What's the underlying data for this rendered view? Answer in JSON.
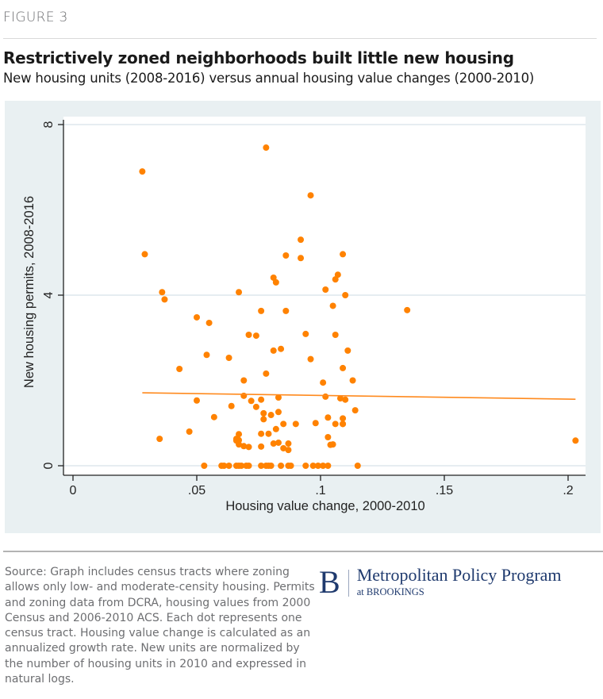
{
  "figure_label": "FIGURE 3",
  "title": "Restrictively zoned neighborhoods built little new housing",
  "subtitle": "New housing units (2008-2016) versus annual housing value changes (2000-2010)",
  "source_note": "Source: Graph includes census tracts where zoning allows only low- and moderate-censity housing. Permits and zoning data from DCRA, housing values from 2000 Census and 2006-2010 ACS. Each dot represents one census tract. Housing value change is calculated as an annualized growth rate. New units are normalized by the number of housing units in 2010 and expressed in natural logs.",
  "logo": {
    "letter": "B",
    "name": "Metropolitan Policy Program",
    "sub": "at BROOKINGS",
    "color": "#1f3a6e"
  },
  "colors": {
    "point": "#ff8200",
    "fit_line": "#ff8a1e",
    "panel_bg": "#e9f0f2",
    "plot_bg": "#ffffff",
    "gridline": "#e6edf1",
    "axis": "#222222"
  },
  "chart_data": {
    "type": "scatter",
    "title": "Restrictively zoned neighborhoods built little new housing",
    "xlabel": "Housing value change, 2000-2010",
    "ylabel": "New housing permits, 2008-2016",
    "xlim": [
      0,
      0.205
    ],
    "ylim": [
      0,
      8
    ],
    "xticks": [
      0,
      0.05,
      0.1,
      0.15,
      0.2
    ],
    "xtick_labels": [
      "0",
      ".05",
      ".1",
      ".15",
      ".2"
    ],
    "yticks": [
      0,
      4,
      8
    ],
    "ytick_labels": [
      "0",
      "4",
      "8"
    ],
    "grid": "horizontal",
    "legend": "none",
    "fit_line": {
      "x": [
        0.028,
        0.203
      ],
      "y": [
        1.71,
        1.56
      ]
    },
    "points": [
      [
        0.028,
        6.9
      ],
      [
        0.078,
        7.46
      ],
      [
        0.096,
        6.34
      ],
      [
        0.029,
        4.96
      ],
      [
        0.092,
        5.3
      ],
      [
        0.086,
        4.93
      ],
      [
        0.092,
        4.87
      ],
      [
        0.109,
        4.96
      ],
      [
        0.081,
        4.41
      ],
      [
        0.082,
        4.3
      ],
      [
        0.107,
        4.48
      ],
      [
        0.106,
        4.37
      ],
      [
        0.036,
        4.07
      ],
      [
        0.067,
        4.07
      ],
      [
        0.102,
        4.13
      ],
      [
        0.11,
        4.0
      ],
      [
        0.037,
        3.9
      ],
      [
        0.076,
        3.63
      ],
      [
        0.086,
        3.63
      ],
      [
        0.105,
        3.75
      ],
      [
        0.135,
        3.65
      ],
      [
        0.05,
        3.48
      ],
      [
        0.055,
        3.35
      ],
      [
        0.071,
        3.07
      ],
      [
        0.074,
        3.05
      ],
      [
        0.094,
        3.09
      ],
      [
        0.106,
        3.07
      ],
      [
        0.081,
        2.7
      ],
      [
        0.084,
        2.74
      ],
      [
        0.111,
        2.7
      ],
      [
        0.054,
        2.6
      ],
      [
        0.063,
        2.53
      ],
      [
        0.096,
        2.5
      ],
      [
        0.043,
        2.27
      ],
      [
        0.109,
        2.29
      ],
      [
        0.078,
        2.16
      ],
      [
        0.113,
        2.0
      ],
      [
        0.069,
        2.0
      ],
      [
        0.101,
        1.95
      ],
      [
        0.069,
        1.64
      ],
      [
        0.076,
        1.55
      ],
      [
        0.083,
        1.6
      ],
      [
        0.102,
        1.62
      ],
      [
        0.108,
        1.58
      ],
      [
        0.11,
        1.55
      ],
      [
        0.05,
        1.53
      ],
      [
        0.072,
        1.52
      ],
      [
        0.064,
        1.4
      ],
      [
        0.074,
        1.38
      ],
      [
        0.114,
        1.3
      ],
      [
        0.057,
        1.14
      ],
      [
        0.077,
        1.23
      ],
      [
        0.08,
        1.19
      ],
      [
        0.083,
        1.26
      ],
      [
        0.077,
        1.09
      ],
      [
        0.103,
        1.13
      ],
      [
        0.109,
        1.11
      ],
      [
        0.085,
        0.98
      ],
      [
        0.09,
        0.98
      ],
      [
        0.098,
        1.0
      ],
      [
        0.109,
        0.98
      ],
      [
        0.109,
        0.98
      ],
      [
        0.047,
        0.8
      ],
      [
        0.082,
        0.86
      ],
      [
        0.106,
        0.98
      ],
      [
        0.076,
        0.75
      ],
      [
        0.067,
        0.74
      ],
      [
        0.066,
        0.63
      ],
      [
        0.035,
        0.63
      ],
      [
        0.079,
        0.75
      ],
      [
        0.103,
        0.67
      ],
      [
        0.066,
        0.59
      ],
      [
        0.067,
        0.5
      ],
      [
        0.071,
        0.44
      ],
      [
        0.076,
        0.45
      ],
      [
        0.081,
        0.52
      ],
      [
        0.083,
        0.54
      ],
      [
        0.087,
        0.52
      ],
      [
        0.085,
        0.41
      ],
      [
        0.087,
        0.37
      ],
      [
        0.104,
        0.49
      ],
      [
        0.105,
        0.5
      ],
      [
        0.067,
        0.6
      ],
      [
        0.069,
        0.46
      ],
      [
        0.203,
        0.59
      ],
      [
        0.053,
        0.0
      ],
      [
        0.06,
        0.0
      ],
      [
        0.061,
        0.0
      ],
      [
        0.063,
        0.0
      ],
      [
        0.066,
        0.0
      ],
      [
        0.067,
        0.0
      ],
      [
        0.068,
        0.0
      ],
      [
        0.07,
        0.0
      ],
      [
        0.071,
        0.0
      ],
      [
        0.076,
        0.0
      ],
      [
        0.078,
        0.0
      ],
      [
        0.079,
        0.0
      ],
      [
        0.08,
        0.0
      ],
      [
        0.084,
        0.0
      ],
      [
        0.087,
        0.0
      ],
      [
        0.088,
        0.0
      ],
      [
        0.094,
        0.0
      ],
      [
        0.097,
        0.0
      ],
      [
        0.099,
        0.0
      ],
      [
        0.101,
        0.0
      ],
      [
        0.103,
        0.0
      ],
      [
        0.115,
        0.0
      ]
    ]
  }
}
